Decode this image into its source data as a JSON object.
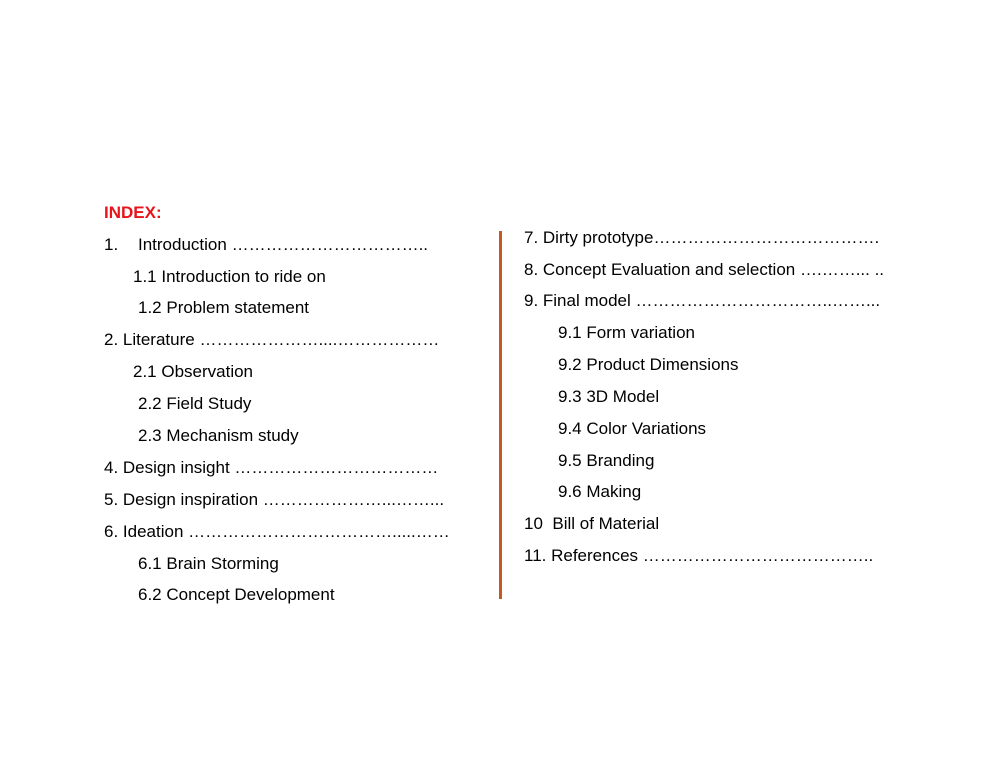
{
  "title": "INDEX:",
  "left": [
    {
      "num": "1.",
      "text": "Introduction ",
      "dots": "…………………………….."
    },
    {
      "text": "1.1 Introduction to ride on"
    },
    {
      "text": "1.2 Problem statement"
    },
    {
      "text": "2. Literature ",
      "dots": "…………………....………………"
    },
    {
      "text": "2.1 Observation"
    },
    {
      "text": "2.2 Field Study"
    },
    {
      "text": "2.3 Mechanism study"
    },
    {
      "text": "4. Design insight ",
      "dots": "………………………………"
    },
    {
      "text": "5. Design inspiration ",
      "dots": "…………………...……..."
    },
    {
      "text": "6. Ideation ",
      "dots": "……………………………….....……"
    },
    {
      "text": "6.1 Brain Storming"
    },
    {
      "text": "6.2 Concept Development"
    }
  ],
  "right": [
    {
      "text": "7. Dirty prototype",
      "dots": "…………………………………."
    },
    {
      "text": "8. Concept Evaluation and selection ",
      "dots": "….……... .."
    },
    {
      "text": "9. Final model ",
      "dots": "……………………………..……..."
    },
    {
      "text": "9.1 Form variation"
    },
    {
      "text": "9.2 Product Dimensions"
    },
    {
      "text": "9.3 3D Model"
    },
    {
      "text": "9.4 Color Variations"
    },
    {
      "text": "9.5 Branding"
    },
    {
      "text": "9.6 Making"
    },
    {
      "text": "10  Bill of Material"
    },
    {
      "text": "11. References ",
      "dots": "………………………………….."
    }
  ],
  "colors": {
    "title": "#e8141c",
    "separator": "#c55a1e"
  }
}
